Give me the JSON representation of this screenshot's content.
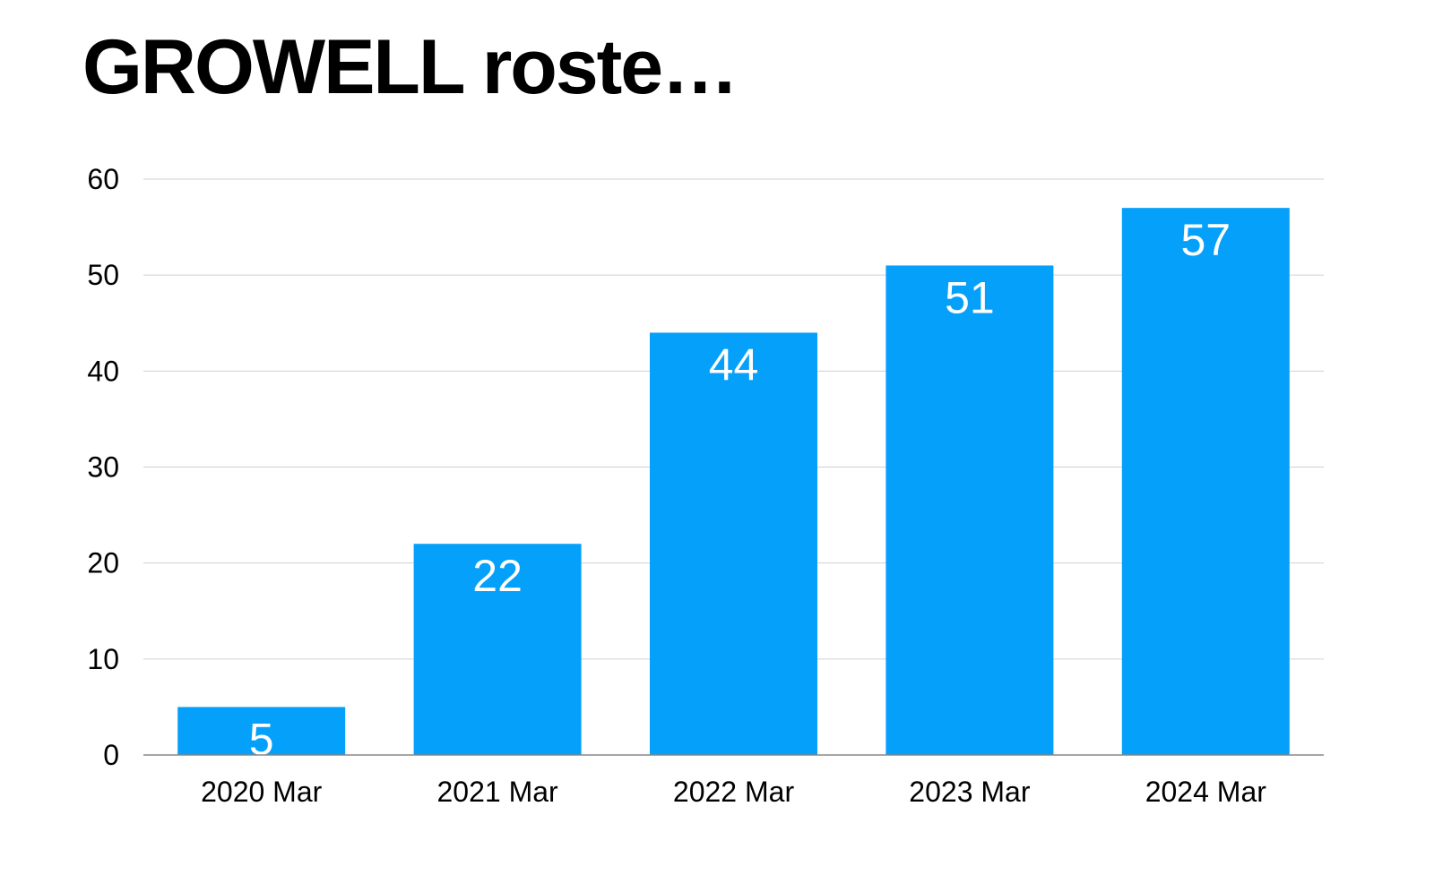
{
  "chart_data": {
    "type": "bar",
    "title": "GROWELL roste…",
    "xlabel": "",
    "ylabel": "",
    "categories": [
      "2020 Mar",
      "2021 Mar",
      "2022 Mar",
      "2023 Mar",
      "2024 Mar"
    ],
    "values": [
      5,
      22,
      44,
      51,
      57
    ],
    "ylim": [
      0,
      60
    ],
    "yticks": [
      0,
      10,
      20,
      30,
      40,
      50,
      60
    ],
    "grid": true,
    "legend": "none",
    "data_labels": "inside-top",
    "colors": {
      "bar": "#05a0fa",
      "data_label": "#ffffff",
      "grid": "#d0d0d0",
      "axis": "#888888",
      "text": "#000000"
    }
  }
}
